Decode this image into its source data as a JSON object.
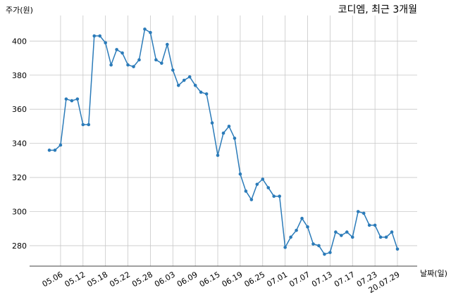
{
  "chart_data": {
    "type": "line",
    "title": "코디엠, 최근 3개월",
    "y_label": "주가(원)",
    "x_label": "날짜(일)",
    "categories": [
      null,
      null,
      "05.06",
      null,
      null,
      null,
      "05.12",
      null,
      null,
      null,
      "05.18",
      null,
      null,
      null,
      "05.22",
      null,
      null,
      null,
      "05.28",
      null,
      null,
      null,
      "06.03",
      null,
      null,
      null,
      "06.09",
      null,
      null,
      null,
      "06.15",
      null,
      null,
      null,
      "06.19",
      null,
      null,
      null,
      "06.25",
      null,
      null,
      null,
      "07.01",
      null,
      null,
      null,
      "07.07",
      null,
      null,
      null,
      "07.13",
      null,
      null,
      null,
      "07.17",
      null,
      null,
      null,
      "07.23",
      null,
      null,
      null,
      "20.07.29"
    ],
    "series": [
      {
        "name": "주가",
        "color": "#2b7bb9",
        "values": [
          336,
          336,
          339,
          366,
          365,
          366,
          351,
          351,
          403,
          403,
          399,
          386,
          395,
          393,
          386,
          385,
          389,
          407,
          405,
          389,
          387,
          398,
          383,
          374,
          377,
          379,
          374,
          370,
          369,
          352,
          333,
          346,
          350,
          343,
          322,
          312,
          307,
          316,
          319,
          314,
          309,
          309,
          279,
          285,
          289,
          296,
          291,
          281,
          280,
          275,
          276,
          288,
          286,
          288,
          285,
          300,
          299,
          292,
          292,
          285,
          285,
          288,
          278
        ]
      }
    ],
    "ylim": [
      268,
      415
    ],
    "yticks": [
      280,
      300,
      320,
      340,
      360,
      380,
      400
    ],
    "grid": true
  }
}
